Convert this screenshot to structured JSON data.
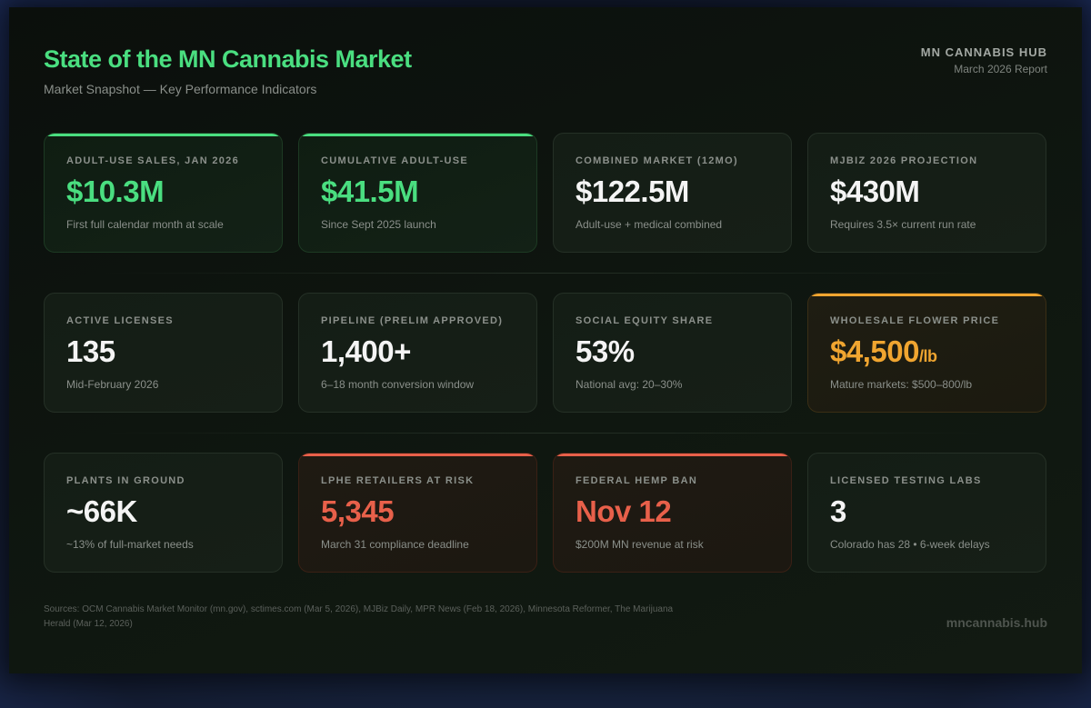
{
  "header": {
    "title": "State of the MN Cannabis Market",
    "subtitle": "Market Snapshot — Key Performance Indicators",
    "brand": "MN CANNABIS HUB",
    "report": "March 2026 Report"
  },
  "colors": {
    "green": "#4ade80",
    "amber": "#f0a530",
    "red": "#e8604a",
    "white": "#f4f4f4"
  },
  "cards": [
    {
      "label": "Adult-Use Sales, Jan 2026",
      "value": "$10.3M",
      "unit": "",
      "sub": "First full calendar month at scale",
      "accent": "green"
    },
    {
      "label": "Cumulative Adult-Use",
      "value": "$41.5M",
      "unit": "",
      "sub": "Since Sept 2025 launch",
      "accent": "green"
    },
    {
      "label": "Combined Market (12mo)",
      "value": "$122.5M",
      "unit": "",
      "sub": "Adult-use + medical combined",
      "accent": "none"
    },
    {
      "label": "MJBiz 2026 Projection",
      "value": "$430M",
      "unit": "",
      "sub": "Requires 3.5× current run rate",
      "accent": "none"
    },
    {
      "label": "Active Licenses",
      "value": "135",
      "unit": "",
      "sub": "Mid-February 2026",
      "accent": "none"
    },
    {
      "label": "Pipeline (Prelim Approved)",
      "value": "1,400+",
      "unit": "",
      "sub": "6–18 month conversion window",
      "accent": "none"
    },
    {
      "label": "Social Equity Share",
      "value": "53%",
      "unit": "",
      "sub": "National avg: 20–30%",
      "accent": "none"
    },
    {
      "label": "Wholesale Flower Price",
      "value": "$4,500",
      "unit": "/lb",
      "sub": "Mature markets: $500–800/lb",
      "accent": "amber"
    },
    {
      "label": "Plants in Ground",
      "value": "~66K",
      "unit": "",
      "sub": "~13% of full-market needs",
      "accent": "none"
    },
    {
      "label": "LPHE Retailers at Risk",
      "value": "5,345",
      "unit": "",
      "sub": "March 31 compliance deadline",
      "accent": "red"
    },
    {
      "label": "Federal Hemp Ban",
      "value": "Nov 12",
      "unit": "",
      "sub": "$200M MN revenue at risk",
      "accent": "red"
    },
    {
      "label": "Licensed Testing Labs",
      "value": "3",
      "unit": "",
      "sub": "Colorado has 28 • 6-week delays",
      "accent": "none"
    }
  ],
  "footer": {
    "sources": "Sources: OCM Cannabis Market Monitor (mn.gov), sctimes.com (Mar 5, 2026), MJBiz Daily, MPR News (Feb 18, 2026), Minnesota Reformer, The Marijuana Herald (Mar 12, 2026)",
    "site": "mncannabis.hub"
  }
}
